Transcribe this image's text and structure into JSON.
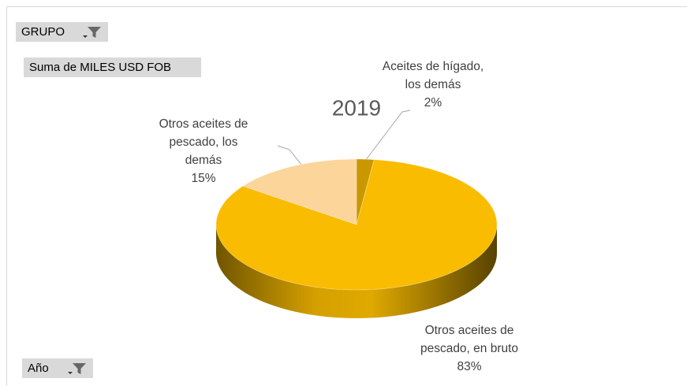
{
  "chart_data": {
    "type": "pie3d",
    "title": "2019",
    "categories": [
      "Aceites de hígado, los demás",
      "Otros aceites de pescado, en bruto",
      "Otros aceites de pescado, los demás"
    ],
    "values": [
      2,
      83,
      15
    ],
    "value_labels": [
      "2%",
      "83%",
      "15%"
    ],
    "colors": [
      "#c99800",
      "#f9bc00",
      "#fcd59a"
    ],
    "pivot_fields": {
      "filter": "GRUPO",
      "values": "Suma de MILES USD FOB",
      "axis": "Año"
    }
  }
}
